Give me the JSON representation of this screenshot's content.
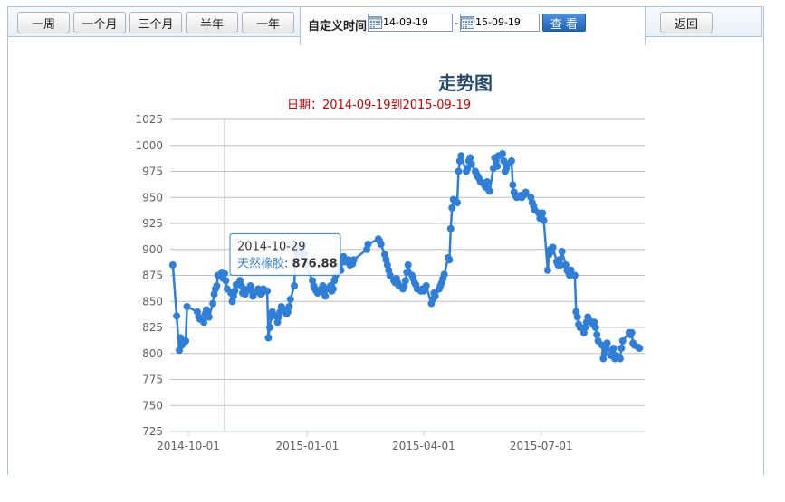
{
  "toolbar": {
    "range_buttons": [
      "一周",
      "一个月",
      "三个月",
      "半年",
      "一年"
    ],
    "custom_label": "自定义时间",
    "start_date": "2014-09-19",
    "end_date": "2015-09-19",
    "separator": "-",
    "view_label": "查 看",
    "back_label": "返回"
  },
  "chart_data": {
    "type": "line",
    "title": "走势图",
    "subtitle": "日期：2014-09-19到2015-09-19",
    "series": [
      {
        "name": "天然橡胶",
        "color": "#2f7ed8",
        "points": [
          [
            "2014-09-19",
            885
          ],
          [
            "2014-09-22",
            836
          ],
          [
            "2014-09-24",
            803
          ],
          [
            "2014-09-25",
            815
          ],
          [
            "2014-09-26",
            808
          ],
          [
            "2014-09-29",
            812
          ],
          [
            "2014-09-30",
            845
          ],
          [
            "2014-10-08",
            840
          ],
          [
            "2014-10-09",
            835
          ],
          [
            "2014-10-10",
            833
          ],
          [
            "2014-10-13",
            830
          ],
          [
            "2014-10-14",
            838
          ],
          [
            "2014-10-15",
            842
          ],
          [
            "2014-10-16",
            838
          ],
          [
            "2014-10-17",
            835
          ],
          [
            "2014-10-20",
            848
          ],
          [
            "2014-10-21",
            857
          ],
          [
            "2014-10-22",
            862
          ],
          [
            "2014-10-23",
            865
          ],
          [
            "2014-10-24",
            875
          ],
          [
            "2014-10-27",
            878
          ],
          [
            "2014-10-28",
            872
          ],
          [
            "2014-10-29",
            876.88
          ],
          [
            "2014-10-30",
            870
          ],
          [
            "2014-10-31",
            862
          ],
          [
            "2014-11-03",
            858
          ],
          [
            "2014-11-04",
            850
          ],
          [
            "2014-11-05",
            855
          ],
          [
            "2014-11-06",
            860
          ],
          [
            "2014-11-07",
            866
          ],
          [
            "2014-11-10",
            870
          ],
          [
            "2014-11-11",
            865
          ],
          [
            "2014-11-12",
            858
          ],
          [
            "2014-11-13",
            862
          ],
          [
            "2014-11-14",
            857
          ],
          [
            "2014-11-17",
            862
          ],
          [
            "2014-11-18",
            865
          ],
          [
            "2014-11-19",
            860
          ],
          [
            "2014-11-20",
            855
          ],
          [
            "2014-11-21",
            858
          ],
          [
            "2014-11-24",
            862
          ],
          [
            "2014-11-25",
            860
          ],
          [
            "2014-11-26",
            857
          ],
          [
            "2014-11-27",
            858
          ],
          [
            "2014-11-28",
            862
          ],
          [
            "2014-12-01",
            860
          ],
          [
            "2014-12-02",
            815
          ],
          [
            "2014-12-03",
            825
          ],
          [
            "2014-12-04",
            835
          ],
          [
            "2014-12-05",
            840
          ],
          [
            "2014-12-08",
            836
          ],
          [
            "2014-12-09",
            830
          ],
          [
            "2014-12-10",
            835
          ],
          [
            "2014-12-11",
            840
          ],
          [
            "2014-12-12",
            845
          ],
          [
            "2014-12-15",
            842
          ],
          [
            "2014-12-16",
            838
          ],
          [
            "2014-12-17",
            840
          ],
          [
            "2014-12-18",
            845
          ],
          [
            "2014-12-19",
            852
          ],
          [
            "2014-12-22",
            865
          ],
          [
            "2014-12-23",
            900
          ],
          [
            "2014-12-24",
            902
          ],
          [
            "2014-12-25",
            895
          ],
          [
            "2014-12-26",
            893
          ],
          [
            "2014-12-29",
            905
          ],
          [
            "2014-12-30",
            895
          ],
          [
            "2014-12-31",
            885
          ],
          [
            "2015-01-05",
            870
          ],
          [
            "2015-01-06",
            865
          ],
          [
            "2015-01-07",
            862
          ],
          [
            "2015-01-08",
            860
          ],
          [
            "2015-01-09",
            858
          ],
          [
            "2015-01-12",
            862
          ],
          [
            "2015-01-13",
            865
          ],
          [
            "2015-01-14",
            858
          ],
          [
            "2015-01-15",
            855
          ],
          [
            "2015-01-16",
            862
          ],
          [
            "2015-01-19",
            865
          ],
          [
            "2015-01-20",
            860
          ],
          [
            "2015-01-21",
            862
          ],
          [
            "2015-01-22",
            870
          ],
          [
            "2015-01-23",
            875
          ],
          [
            "2015-01-26",
            885
          ],
          [
            "2015-01-27",
            880
          ],
          [
            "2015-01-28",
            890
          ],
          [
            "2015-01-29",
            893
          ],
          [
            "2015-01-30",
            888
          ],
          [
            "2015-02-02",
            890
          ],
          [
            "2015-02-03",
            885
          ],
          [
            "2015-02-04",
            888
          ],
          [
            "2015-02-05",
            886
          ],
          [
            "2015-02-06",
            890
          ],
          [
            "2015-02-16",
            900
          ],
          [
            "2015-02-17",
            905
          ],
          [
            "2015-02-25",
            910
          ],
          [
            "2015-02-26",
            908
          ],
          [
            "2015-02-27",
            905
          ],
          [
            "2015-03-02",
            895
          ],
          [
            "2015-03-03",
            890
          ],
          [
            "2015-03-04",
            885
          ],
          [
            "2015-03-05",
            880
          ],
          [
            "2015-03-06",
            875
          ],
          [
            "2015-03-09",
            870
          ],
          [
            "2015-03-10",
            868
          ],
          [
            "2015-03-11",
            872
          ],
          [
            "2015-03-12",
            868
          ],
          [
            "2015-03-13",
            865
          ],
          [
            "2015-03-16",
            862
          ],
          [
            "2015-03-17",
            865
          ],
          [
            "2015-03-18",
            870
          ],
          [
            "2015-03-19",
            878
          ],
          [
            "2015-03-20",
            885
          ],
          [
            "2015-03-23",
            875
          ],
          [
            "2015-03-24",
            872
          ],
          [
            "2015-03-25",
            868
          ],
          [
            "2015-03-26",
            866
          ],
          [
            "2015-03-27",
            862
          ],
          [
            "2015-03-30",
            860
          ],
          [
            "2015-03-31",
            862
          ],
          [
            "2015-04-01",
            860
          ],
          [
            "2015-04-02",
            862
          ],
          [
            "2015-04-03",
            865
          ],
          [
            "2015-04-07",
            848
          ],
          [
            "2015-04-08",
            852
          ],
          [
            "2015-04-09",
            858
          ],
          [
            "2015-04-10",
            855
          ],
          [
            "2015-04-13",
            862
          ],
          [
            "2015-04-14",
            865
          ],
          [
            "2015-04-15",
            868
          ],
          [
            "2015-04-16",
            872
          ],
          [
            "2015-04-17",
            876
          ],
          [
            "2015-04-20",
            892
          ],
          [
            "2015-04-21",
            890
          ],
          [
            "2015-04-22",
            920
          ],
          [
            "2015-04-23",
            940
          ],
          [
            "2015-04-24",
            948
          ],
          [
            "2015-04-27",
            945
          ],
          [
            "2015-04-28",
            975
          ],
          [
            "2015-04-29",
            985
          ],
          [
            "2015-04-30",
            990
          ],
          [
            "2015-05-04",
            975
          ],
          [
            "2015-05-05",
            978
          ],
          [
            "2015-05-06",
            985
          ],
          [
            "2015-05-07",
            988
          ],
          [
            "2015-05-08",
            982
          ],
          [
            "2015-05-11",
            975
          ],
          [
            "2015-05-12",
            972
          ],
          [
            "2015-05-13",
            970
          ],
          [
            "2015-05-14",
            968
          ],
          [
            "2015-05-15",
            965
          ],
          [
            "2015-05-18",
            962
          ],
          [
            "2015-05-19",
            960
          ],
          [
            "2015-05-20",
            965
          ],
          [
            "2015-05-21",
            958
          ],
          [
            "2015-05-22",
            956
          ],
          [
            "2015-05-25",
            978
          ],
          [
            "2015-05-26",
            988
          ],
          [
            "2015-05-27",
            985
          ],
          [
            "2015-05-28",
            980
          ],
          [
            "2015-05-29",
            990
          ],
          [
            "2015-06-01",
            992
          ],
          [
            "2015-06-02",
            985
          ],
          [
            "2015-06-03",
            975
          ],
          [
            "2015-06-04",
            978
          ],
          [
            "2015-06-05",
            982
          ],
          [
            "2015-06-08",
            985
          ],
          [
            "2015-06-09",
            962
          ],
          [
            "2015-06-10",
            955
          ],
          [
            "2015-06-11",
            952
          ],
          [
            "2015-06-12",
            950
          ],
          [
            "2015-06-15",
            952
          ],
          [
            "2015-06-16",
            950
          ],
          [
            "2015-06-17",
            952
          ],
          [
            "2015-06-18",
            953
          ],
          [
            "2015-06-19",
            955
          ],
          [
            "2015-06-23",
            950
          ],
          [
            "2015-06-24",
            945
          ],
          [
            "2015-06-25",
            942
          ],
          [
            "2015-06-26",
            938
          ],
          [
            "2015-06-29",
            935
          ],
          [
            "2015-06-30",
            930
          ],
          [
            "2015-07-01",
            932
          ],
          [
            "2015-07-02",
            935
          ],
          [
            "2015-07-03",
            928
          ],
          [
            "2015-07-06",
            880
          ],
          [
            "2015-07-07",
            895
          ],
          [
            "2015-07-08",
            900
          ],
          [
            "2015-07-09",
            898
          ],
          [
            "2015-07-10",
            902
          ],
          [
            "2015-07-13",
            888
          ],
          [
            "2015-07-14",
            885
          ],
          [
            "2015-07-15",
            890
          ],
          [
            "2015-07-16",
            885
          ],
          [
            "2015-07-17",
            898
          ],
          [
            "2015-07-20",
            885
          ],
          [
            "2015-07-21",
            880
          ],
          [
            "2015-07-22",
            878
          ],
          [
            "2015-07-23",
            875
          ],
          [
            "2015-07-24",
            880
          ],
          [
            "2015-07-27",
            875
          ],
          [
            "2015-07-28",
            840
          ],
          [
            "2015-07-29",
            835
          ],
          [
            "2015-07-30",
            828
          ],
          [
            "2015-07-31",
            825
          ],
          [
            "2015-08-03",
            820
          ],
          [
            "2015-08-04",
            825
          ],
          [
            "2015-08-05",
            830
          ],
          [
            "2015-08-06",
            835
          ],
          [
            "2015-08-07",
            832
          ],
          [
            "2015-08-10",
            828
          ],
          [
            "2015-08-11",
            830
          ],
          [
            "2015-08-12",
            825
          ],
          [
            "2015-08-13",
            818
          ],
          [
            "2015-08-14",
            812
          ],
          [
            "2015-08-17",
            808
          ],
          [
            "2015-08-18",
            795
          ],
          [
            "2015-08-19",
            800
          ],
          [
            "2015-08-20",
            805
          ],
          [
            "2015-08-21",
            810
          ],
          [
            "2015-08-24",
            798
          ],
          [
            "2015-08-25",
            800
          ],
          [
            "2015-08-26",
            805
          ],
          [
            "2015-08-27",
            795
          ],
          [
            "2015-08-28",
            798
          ],
          [
            "2015-08-31",
            795
          ],
          [
            "2015-09-01",
            805
          ],
          [
            "2015-09-02",
            812
          ],
          [
            "2015-09-07",
            820
          ],
          [
            "2015-09-08",
            818
          ],
          [
            "2015-09-09",
            820
          ],
          [
            "2015-09-10",
            810
          ],
          [
            "2015-09-11",
            808
          ],
          [
            "2015-09-14",
            806
          ],
          [
            "2015-09-15",
            805
          ]
        ]
      }
    ],
    "ylim": [
      725,
      1025
    ],
    "ytick_step": 25,
    "xlim": [
      "2014-09-17",
      "2015-09-19"
    ],
    "xticks": [
      "2014-10-01",
      "2015-01-01",
      "2015-04-01",
      "2015-07-01"
    ],
    "grid": true,
    "tooltip": {
      "date": "2014-10-29",
      "series": "天然橡胶",
      "value": "876.88"
    },
    "gridline_color": "#c0c0c0",
    "crosshair_color": "#c0c0c0"
  }
}
